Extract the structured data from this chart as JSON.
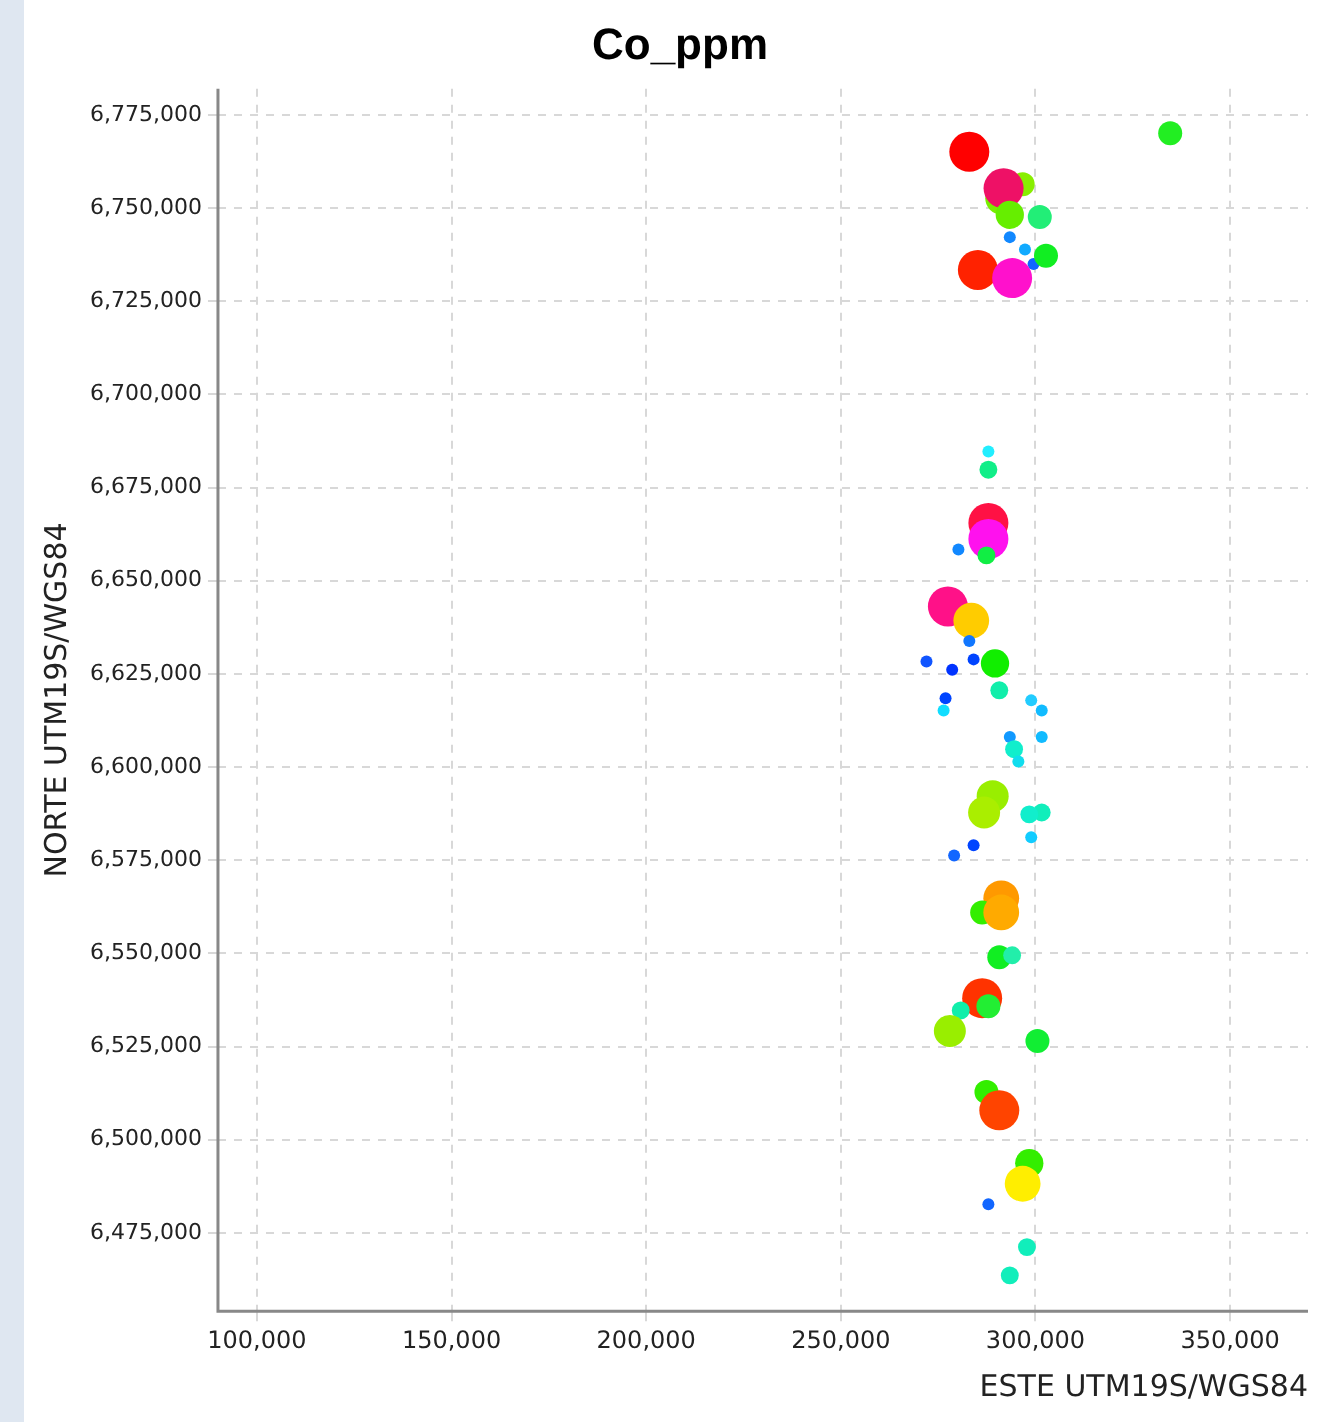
{
  "chart_data": {
    "type": "bubble",
    "title": "Co_ppm",
    "xlabel": "ESTE UTM19S/WGS84",
    "ylabel": "NORTE UTM19S/WGS84",
    "x": [
      334600,
      283000,
      291200,
      296700,
      291800,
      293400,
      301100,
      293400,
      297300,
      299500,
      302700,
      285200,
      294000,
      287900,
      287900,
      287900,
      287900,
      287400,
      280200,
      277500,
      283500,
      283000,
      272000,
      278600,
      284100,
      289600,
      290700,
      276900,
      276400,
      298900,
      301600,
      293400,
      301600,
      294500,
      295600,
      289000,
      286800,
      301600,
      298400,
      298900,
      284100,
      279100,
      291200,
      286300,
      291200,
      290700,
      294000,
      286300,
      287900,
      280800,
      278000,
      300500,
      287400,
      290700,
      298400,
      296700,
      287900,
      297800,
      293400
    ],
    "values": [
      6770100,
      6765100,
      6752600,
      6756400,
      6755300,
      6748200,
      6747600,
      6742200,
      6738900,
      6735000,
      6737200,
      6733400,
      6731200,
      6684700,
      6679800,
      6665500,
      6661200,
      6656800,
      6658400,
      6643100,
      6639300,
      6633800,
      6628300,
      6626100,
      6628900,
      6627800,
      6620600,
      6618500,
      6615200,
      6617900,
      6615200,
      6608100,
      6608100,
      6604800,
      6601500,
      6592200,
      6587800,
      6587800,
      6587300,
      6581200,
      6579000,
      6576300,
      6564800,
      6561000,
      6561000,
      6549000,
      6549500,
      6538000,
      6535800,
      6534700,
      6529200,
      6526500,
      6512800,
      6507900,
      6493700,
      6488200,
      6482700,
      6471200,
      6463600
    ],
    "sizes": [
      0.36,
      1,
      0.64,
      0.36,
      1,
      0.5,
      0.36,
      0.09,
      0.09,
      0.09,
      0.36,
      1,
      1,
      0.09,
      0.2,
      1,
      1,
      0.2,
      0.09,
      1,
      0.8,
      0.09,
      0.09,
      0.09,
      0.09,
      0.5,
      0.2,
      0.09,
      0.09,
      0.09,
      0.09,
      0.09,
      0.09,
      0.2,
      0.09,
      0.64,
      0.64,
      0.2,
      0.2,
      0.09,
      0.09,
      0.09,
      0.8,
      0.36,
      0.8,
      0.36,
      0.2,
      1,
      0.36,
      0.2,
      0.64,
      0.36,
      0.36,
      1,
      0.5,
      0.8,
      0.09,
      0.2,
      0.2
    ],
    "colors": [
      "#22ee22",
      "#ff0000",
      "#77ee00",
      "#88ee00",
      "#ee1166",
      "#66ee00",
      "#22ee77",
      "#1188ff",
      "#11aaff",
      "#1166ff",
      "#11ee22",
      "#ff2200",
      "#ff11cc",
      "#22eeff",
      "#11ee88",
      "#ff1144",
      "#ff11ee",
      "#11ee44",
      "#1188ff",
      "#ff1188",
      "#ffcc00",
      "#1177ff",
      "#1155ff",
      "#0033ff",
      "#0044ff",
      "#11ee00",
      "#11eeaa",
      "#0044ff",
      "#11ddff",
      "#22ccff",
      "#11bbff",
      "#1199ff",
      "#11bbff",
      "#11eecc",
      "#11ddee",
      "#99ee00",
      "#aaee00",
      "#11eebb",
      "#11eecc",
      "#11ccff",
      "#0044ff",
      "#1166ff",
      "#ff9900",
      "#33ee00",
      "#ffaa00",
      "#11ee22",
      "#22eeaa",
      "#ff3300",
      "#22ee33",
      "#11eeaa",
      "#99ee00",
      "#11ee33",
      "#33ee00",
      "#ff4400",
      "#33ee00",
      "#ffee00",
      "#1166ff",
      "#11eebb",
      "#11eebb"
    ],
    "xlim": [
      90000,
      370000
    ],
    "xticks": [
      {
        "value": 100000,
        "label": "100,000"
      },
      {
        "value": 150000,
        "label": "150,000"
      },
      {
        "value": 200000,
        "label": "200,000"
      },
      {
        "value": 250000,
        "label": "250,000"
      },
      {
        "value": 300000,
        "label": "300,000"
      },
      {
        "value": 350000,
        "label": "350,000"
      }
    ],
    "ylim": [
      6454000,
      6782000
    ],
    "yticks": [
      {
        "value": 6475000,
        "label": "6,475,000"
      },
      {
        "value": 6500000,
        "label": "6,500,000"
      },
      {
        "value": 6525000,
        "label": "6,525,000"
      },
      {
        "value": 6550000,
        "label": "6,550,000"
      },
      {
        "value": 6575000,
        "label": "6,575,000"
      },
      {
        "value": 6600000,
        "label": "6,600,000"
      },
      {
        "value": 6625000,
        "label": "6,625,000"
      },
      {
        "value": 6650000,
        "label": "6,650,000"
      },
      {
        "value": 6675000,
        "label": "6,675,000"
      },
      {
        "value": 6700000,
        "label": "6,700,000"
      },
      {
        "value": 6725000,
        "label": "6,725,000"
      },
      {
        "value": 6750000,
        "label": "6,750,000"
      },
      {
        "value": 6775000,
        "label": "6,775,000"
      }
    ],
    "grid": true,
    "legend": false,
    "marker": "circle"
  }
}
